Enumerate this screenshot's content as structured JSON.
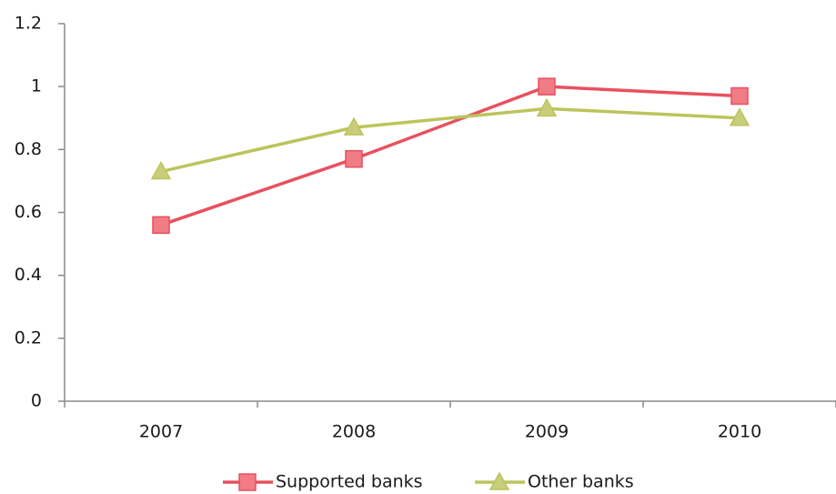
{
  "chart_data": {
    "type": "line",
    "categories": [
      "2007",
      "2008",
      "2009",
      "2010"
    ],
    "series": [
      {
        "name": "Supported banks",
        "color": "#e8505e",
        "marker": "square",
        "values": [
          0.56,
          0.77,
          1.0,
          0.97
        ]
      },
      {
        "name": "Other banks",
        "color": "#bcc45c",
        "marker": "triangle",
        "values": [
          0.73,
          0.87,
          0.93,
          0.9
        ]
      }
    ],
    "ylim": [
      0,
      1.2
    ],
    "yticks": [
      0,
      0.2,
      0.4,
      0.6,
      0.8,
      1,
      1.2
    ],
    "grid": false,
    "legend": "bottom"
  }
}
